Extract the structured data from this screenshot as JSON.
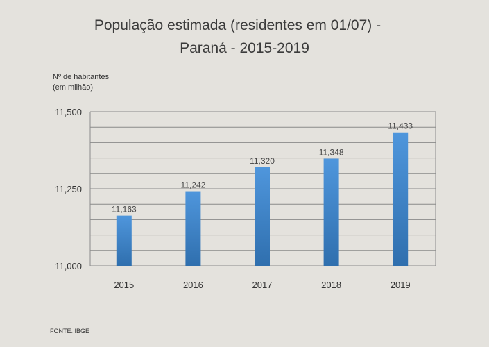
{
  "chart_data": {
    "type": "bar",
    "title": [
      "População estimada (residentes em 01/07) -",
      "Paraná - 2015-2019"
    ],
    "ylabel": [
      "Nº de habitantes",
      "(em milhão)"
    ],
    "xlabel": "",
    "categories": [
      "2015",
      "2016",
      "2017",
      "2018",
      "2019"
    ],
    "values": [
      11.163,
      11.242,
      11.32,
      11.348,
      11.433
    ],
    "data_labels": [
      "11,163",
      "11,242",
      "11,320",
      "11,348",
      "11,433"
    ],
    "ylim": [
      11.0,
      11.5
    ],
    "yticks": [
      11.0,
      11.25,
      11.5
    ],
    "ytick_labels": [
      "11,000",
      "11,250",
      "11,500"
    ],
    "gridline_step": 0.05,
    "grid": true,
    "bar_color": "#4a8fd4",
    "source": "FONTE: IBGE"
  }
}
